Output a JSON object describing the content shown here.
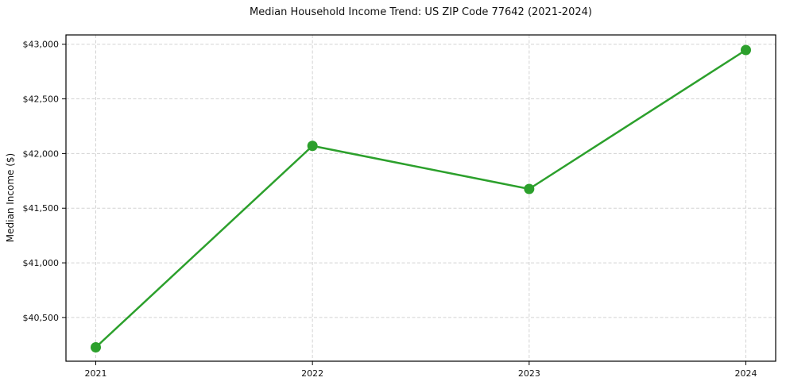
{
  "chart_data": {
    "type": "line",
    "title": "Median Household Income Trend: US ZIP Code 77642 (2021-2024)",
    "xlabel": "",
    "ylabel": "Median Income ($)",
    "categories": [
      "2021",
      "2022",
      "2023",
      "2024"
    ],
    "series": [
      {
        "name": "Median Household Income",
        "values": [
          40227,
          42070,
          41676,
          42947
        ]
      }
    ],
    "ylim": [
      40100,
      43085
    ],
    "y_ticks": [
      {
        "value": 40500,
        "label": "$40,500"
      },
      {
        "value": 41000,
        "label": "$41,000"
      },
      {
        "value": 41500,
        "label": "$41,500"
      },
      {
        "value": 42000,
        "label": "$42,000"
      },
      {
        "value": 42500,
        "label": "$42,500"
      },
      {
        "value": 43000,
        "label": "$43,000"
      }
    ],
    "grid": true,
    "grid_style": "dashed",
    "legend_position": "none",
    "line_color": "#2ca02c",
    "marker": "circle",
    "grid_color": "#d3d3d3",
    "axis_color": "#000000",
    "text_color": "#111111"
  }
}
